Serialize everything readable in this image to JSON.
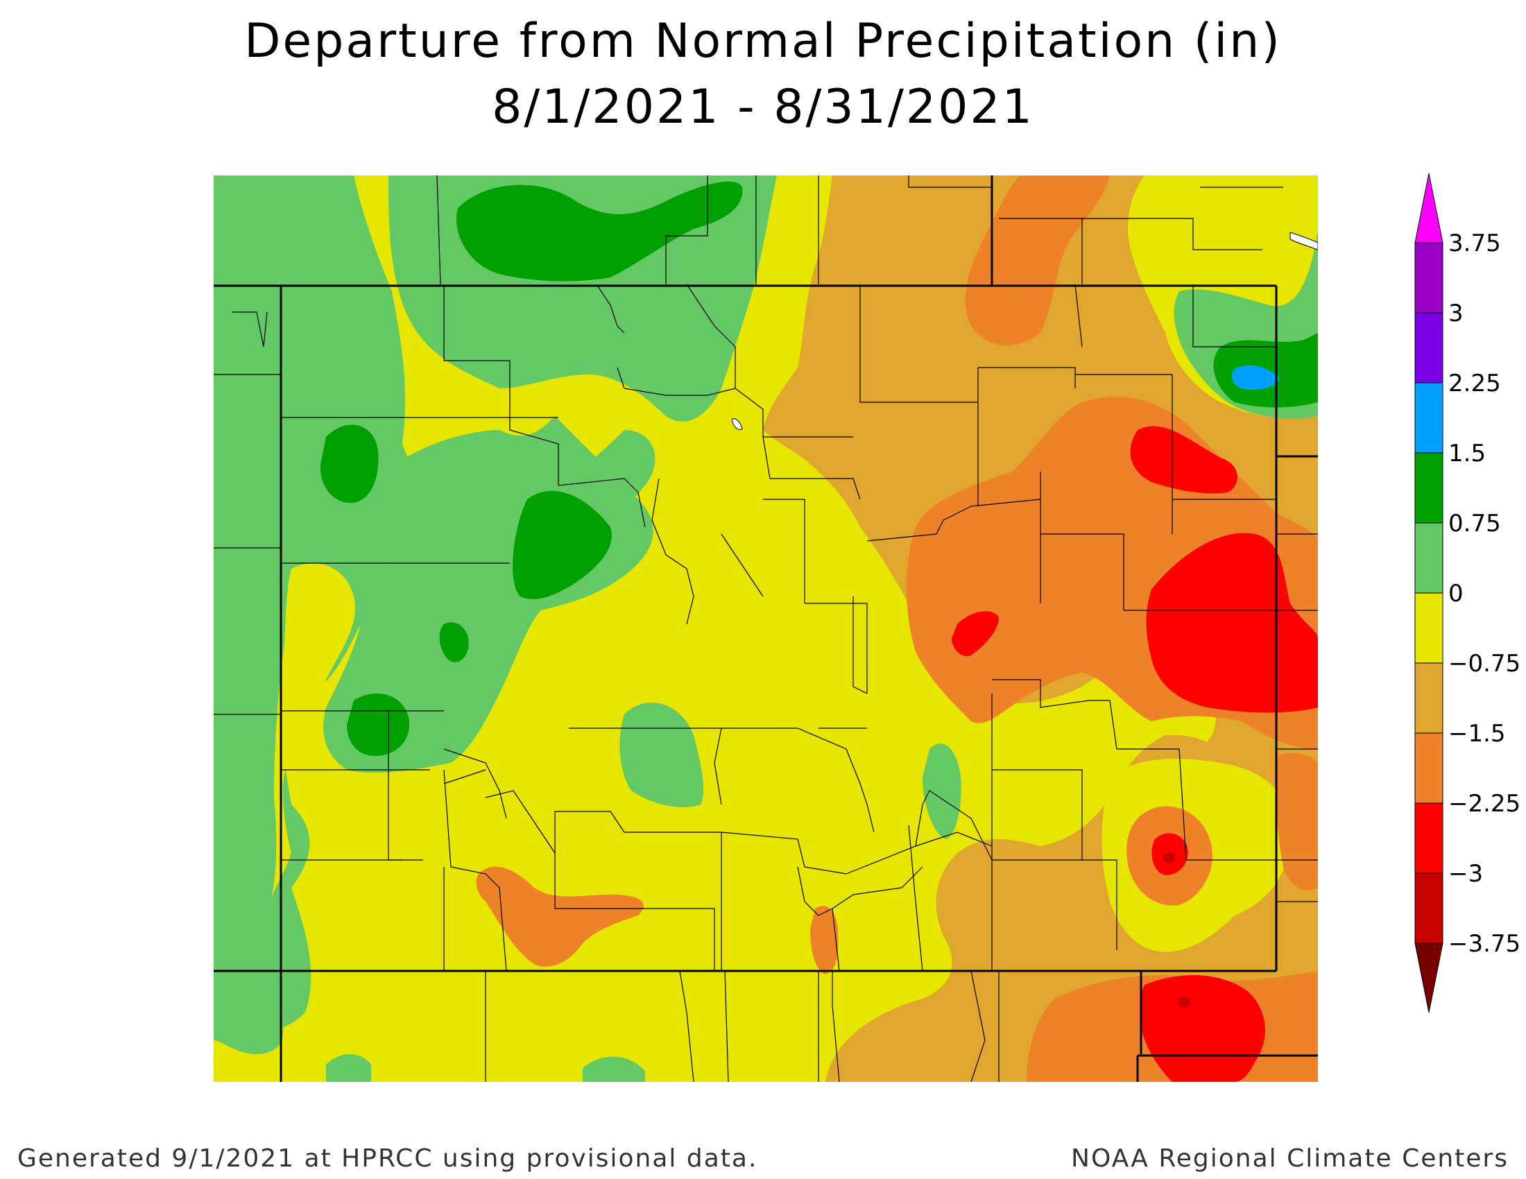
{
  "title": "Departure from Normal Precipitation (in)",
  "subtitle": "8/1/2021 - 8/31/2021",
  "footer_left": "Generated 9/1/2021 at HPRCC using provisional data.",
  "footer_right": "NOAA Regional Climate Centers",
  "legend": {
    "labels": [
      "3.75",
      "3",
      "2.25",
      "1.5",
      "0.75",
      "0",
      "−0.75",
      "−1.5",
      "−2.25",
      "−3",
      "−3.75"
    ],
    "colors": {
      "above_3.75": "#ff00ff",
      "3_to_3.75": "#9b00c8",
      "2.25_to_3": "#7a00e6",
      "1.5_to_2.25": "#00a0ff",
      "0.75_to_1.5": "#00a000",
      "0_to_0.75": "#64c864",
      "-0.75_to_0": "#e6e600",
      "-1.5_to_-0.75": "#e1a62d",
      "-2.25_to_-1.5": "#ee8228",
      "-3_to_-2.25": "#ff0000",
      "-3.75_to_-3": "#c80000",
      "below_-3.75": "#780000"
    }
  },
  "map_colors": {
    "green": "#64c864",
    "dark_green": "#00a000",
    "blue": "#00a0ff",
    "yellow": "#e6e600",
    "gold": "#e1a62d",
    "orange": "#ee8228",
    "red": "#ff0000",
    "dark_red": "#c80000"
  }
}
